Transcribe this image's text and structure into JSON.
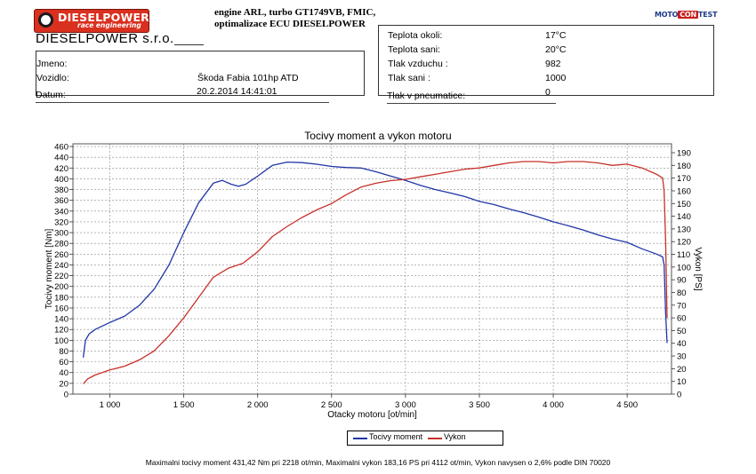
{
  "header": {
    "logo_text": "DIESELPOWER",
    "logo_subtext": "race engineering",
    "company": "DIESELPOWER s.r.o.",
    "engine_lines": [
      "engine ARL, turbo GT1749VB, FMIC,",
      "optimalizace ECU DIESELPOWER"
    ],
    "motocom_parts": [
      "MOTO",
      "CON",
      "TEST"
    ]
  },
  "info_left": {
    "rows": [
      {
        "label": "Jmeno:",
        "value": ""
      },
      {
        "label": "Vozidlo:",
        "value": "Škoda Fabia 101hp ATD"
      },
      {
        "label": "Datum:",
        "value": "20.2.2014 14:41:01"
      }
    ]
  },
  "info_right": {
    "rows": [
      {
        "label": "Teplota okoli:",
        "value": "17°C"
      },
      {
        "label": "Teplota sani:",
        "value": "20°C"
      },
      {
        "label": "Tlak vzduchu :",
        "value": "982"
      },
      {
        "label": "Tlak sani :",
        "value": "1000"
      },
      {
        "label": "Tlak v pneumatice:",
        "value": "0"
      }
    ]
  },
  "footer": {
    "text": "Maximalni tocivy moment 431,42 Nm pri 2218 ot/min,  Maximalni vykon 183,16 PS pri 4112 ot/min,  Vykon navysen o 2,6% podle DIN 70020"
  },
  "chart_data": {
    "type": "line",
    "title": "Tocivy moment a vykon motoru",
    "xlabel": "Otacky motoru [ot/min]",
    "ylabel": "Tocivy moment [Nm]",
    "y2label": "Vykon [PS]",
    "xlim": [
      750,
      4800
    ],
    "ylim": [
      0,
      465
    ],
    "y2lim": [
      0,
      197
    ],
    "xticks": [
      1000,
      1500,
      2000,
      2500,
      3000,
      3500,
      4000,
      4500
    ],
    "xtick_labels": [
      "1 000",
      "1 500",
      "2 000",
      "2 500",
      "3 000",
      "3 500",
      "4 000",
      "4 500"
    ],
    "yticks": [
      0,
      20,
      40,
      60,
      80,
      100,
      120,
      140,
      160,
      180,
      200,
      220,
      240,
      260,
      280,
      300,
      320,
      340,
      360,
      380,
      400,
      420,
      440,
      460
    ],
    "y2ticks": [
      0,
      10,
      20,
      30,
      40,
      50,
      60,
      70,
      80,
      90,
      100,
      110,
      120,
      130,
      140,
      150,
      160,
      170,
      180,
      190
    ],
    "grid": true,
    "legend_position": "bottom-center",
    "series": [
      {
        "name": "Tocivy moment",
        "axis": "left",
        "color": "#1f35a8",
        "points": [
          [
            820,
            68
          ],
          [
            835,
            100
          ],
          [
            860,
            112
          ],
          [
            900,
            120
          ],
          [
            1000,
            133
          ],
          [
            1100,
            145
          ],
          [
            1200,
            165
          ],
          [
            1300,
            195
          ],
          [
            1400,
            240
          ],
          [
            1500,
            300
          ],
          [
            1600,
            355
          ],
          [
            1700,
            392
          ],
          [
            1760,
            397
          ],
          [
            1820,
            390
          ],
          [
            1870,
            386
          ],
          [
            1920,
            390
          ],
          [
            2000,
            405
          ],
          [
            2100,
            425
          ],
          [
            2200,
            431
          ],
          [
            2300,
            430
          ],
          [
            2400,
            427
          ],
          [
            2500,
            423
          ],
          [
            2600,
            421
          ],
          [
            2700,
            420
          ],
          [
            2800,
            413
          ],
          [
            2900,
            405
          ],
          [
            3000,
            397
          ],
          [
            3100,
            388
          ],
          [
            3200,
            380
          ],
          [
            3300,
            374
          ],
          [
            3400,
            367
          ],
          [
            3500,
            358
          ],
          [
            3600,
            352
          ],
          [
            3700,
            344
          ],
          [
            3800,
            337
          ],
          [
            3900,
            329
          ],
          [
            4000,
            320
          ],
          [
            4100,
            313
          ],
          [
            4200,
            305
          ],
          [
            4300,
            296
          ],
          [
            4400,
            288
          ],
          [
            4500,
            282
          ],
          [
            4600,
            270
          ],
          [
            4700,
            260
          ],
          [
            4740,
            255
          ],
          [
            4750,
            240
          ],
          [
            4760,
            150
          ],
          [
            4770,
            95
          ]
        ]
      },
      {
        "name": "Vykon",
        "axis": "right",
        "color": "#c8302a",
        "points": [
          [
            820,
            8
          ],
          [
            850,
            12
          ],
          [
            900,
            15
          ],
          [
            1000,
            19
          ],
          [
            1100,
            22
          ],
          [
            1200,
            27
          ],
          [
            1300,
            34
          ],
          [
            1400,
            46
          ],
          [
            1500,
            60
          ],
          [
            1600,
            76
          ],
          [
            1700,
            92
          ],
          [
            1800,
            99
          ],
          [
            1900,
            103
          ],
          [
            2000,
            112
          ],
          [
            2100,
            124
          ],
          [
            2200,
            132
          ],
          [
            2300,
            139
          ],
          [
            2400,
            145
          ],
          [
            2500,
            150
          ],
          [
            2600,
            157
          ],
          [
            2700,
            163
          ],
          [
            2800,
            166
          ],
          [
            2900,
            168
          ],
          [
            3000,
            169
          ],
          [
            3100,
            171
          ],
          [
            3200,
            173
          ],
          [
            3300,
            175
          ],
          [
            3400,
            177
          ],
          [
            3500,
            178
          ],
          [
            3600,
            180
          ],
          [
            3700,
            182
          ],
          [
            3800,
            183
          ],
          [
            3900,
            183
          ],
          [
            4000,
            182
          ],
          [
            4100,
            183
          ],
          [
            4200,
            183
          ],
          [
            4300,
            182
          ],
          [
            4400,
            180
          ],
          [
            4500,
            181
          ],
          [
            4600,
            178
          ],
          [
            4700,
            173
          ],
          [
            4740,
            170
          ],
          [
            4750,
            160
          ],
          [
            4760,
            120
          ],
          [
            4770,
            60
          ]
        ]
      }
    ]
  }
}
